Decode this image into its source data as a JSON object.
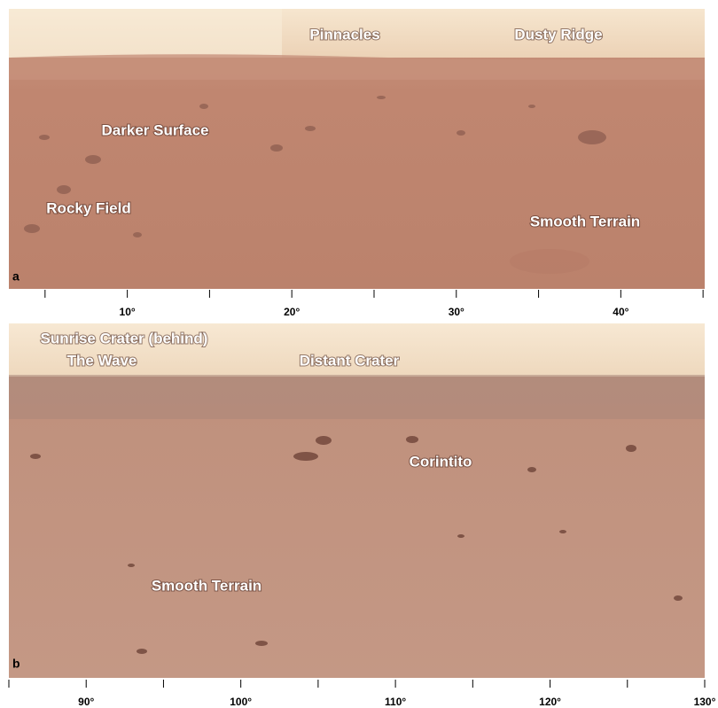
{
  "panels": [
    {
      "label": "a",
      "annotations": [
        "Pinnacles",
        "Dusty Ridge",
        "Darker Surface",
        "Rocky Field",
        "Smooth Terrain"
      ],
      "axis": {
        "xlim": [
          2.8,
          45.1
        ],
        "ticks": [
          {
            "value": 10,
            "label": "10°"
          },
          {
            "value": 20,
            "label": "20°"
          },
          {
            "value": 30,
            "label": "30°"
          },
          {
            "value": 40,
            "label": "40°"
          }
        ],
        "minor_ticks": [
          5,
          15,
          25,
          35,
          45
        ]
      }
    },
    {
      "label": "b",
      "annotations": [
        "Sunrise Crater (behind)",
        "The Wave",
        "Distant Crater",
        "Corintito",
        "Smooth Terrain"
      ],
      "axis": {
        "xlim": [
          85,
          130
        ],
        "ticks": [
          {
            "value": 90,
            "label": "90°"
          },
          {
            "value": 100,
            "label": "100°"
          },
          {
            "value": 110,
            "label": "110°"
          },
          {
            "value": 120,
            "label": "120°"
          },
          {
            "value": 130,
            "label": "130°"
          }
        ],
        "minor_ticks": [
          85,
          95,
          105,
          115,
          125
        ]
      }
    }
  ]
}
